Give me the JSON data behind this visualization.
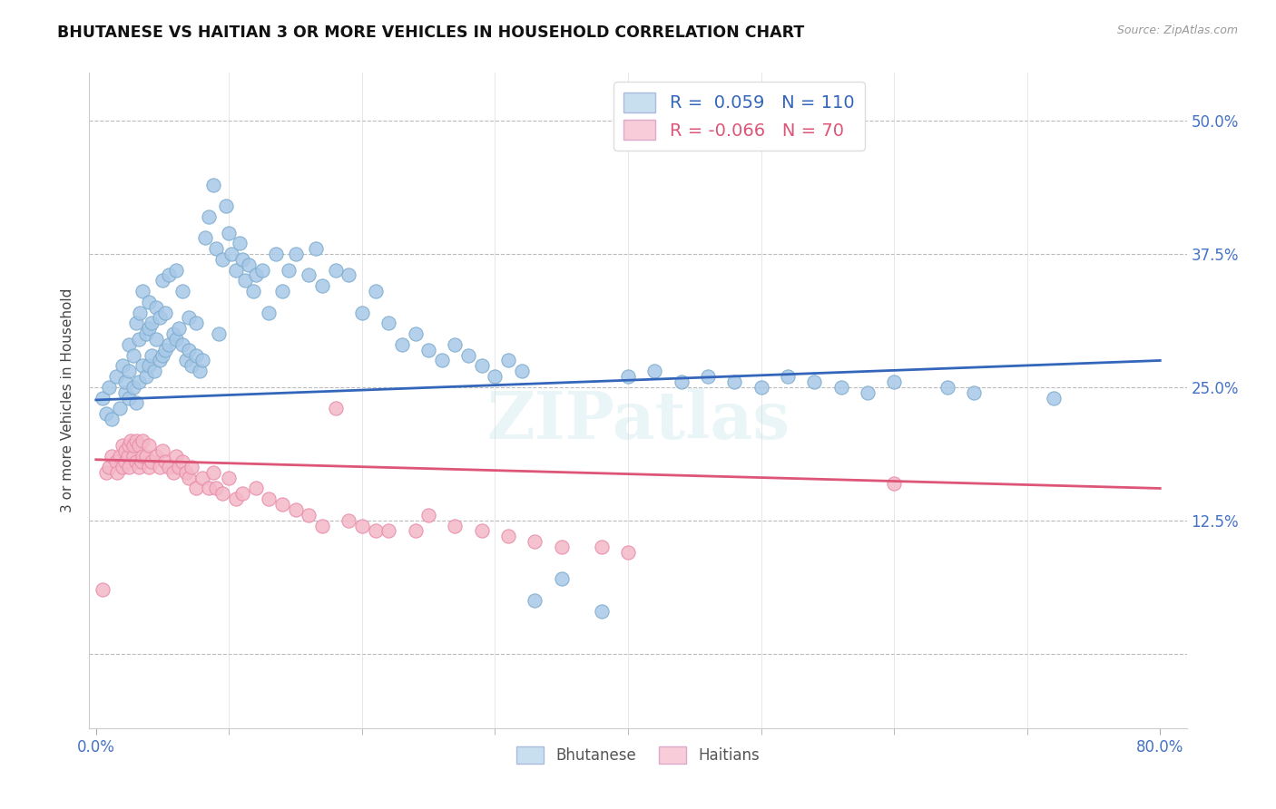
{
  "title": "BHUTANESE VS HAITIAN 3 OR MORE VEHICLES IN HOUSEHOLD CORRELATION CHART",
  "source": "Source: ZipAtlas.com",
  "ylabel": "3 or more Vehicles in Household",
  "xlim": [
    -0.005,
    0.82
  ],
  "ylim": [
    -0.07,
    0.545
  ],
  "bhutanese_R": 0.059,
  "bhutanese_N": 110,
  "haitian_R": -0.066,
  "haitian_N": 70,
  "blue_color": "#a8c8e8",
  "pink_color": "#f4b8c8",
  "blue_edge_color": "#7aaacc",
  "pink_edge_color": "#e888a8",
  "blue_line_color": "#3366bb",
  "pink_line_color": "#dd5577",
  "legend_blue_fill": "#c8dff0",
  "legend_pink_fill": "#f8ccd8",
  "watermark": "ZIPatlas",
  "ytick_vals": [
    0.0,
    0.125,
    0.25,
    0.375,
    0.5
  ],
  "ytick_labels": [
    "",
    "12.5%",
    "25.0%",
    "37.5%",
    "50.0%"
  ],
  "xtick_vals": [
    0.0,
    0.8
  ],
  "xtick_labels": [
    "0.0%",
    "80.0%"
  ],
  "xtick_minor_vals": [
    0.1,
    0.2,
    0.3,
    0.4,
    0.5,
    0.6,
    0.7
  ],
  "blue_trend_x": [
    0.0,
    0.8
  ],
  "blue_trend_y": [
    0.238,
    0.275
  ],
  "pink_trend_x": [
    0.0,
    0.8
  ],
  "pink_trend_y": [
    0.182,
    0.155
  ],
  "blue_scatter_x": [
    0.005,
    0.008,
    0.01,
    0.012,
    0.015,
    0.018,
    0.02,
    0.022,
    0.022,
    0.025,
    0.025,
    0.025,
    0.028,
    0.028,
    0.03,
    0.03,
    0.032,
    0.032,
    0.033,
    0.035,
    0.035,
    0.038,
    0.038,
    0.04,
    0.04,
    0.04,
    0.042,
    0.042,
    0.044,
    0.045,
    0.045,
    0.048,
    0.048,
    0.05,
    0.05,
    0.052,
    0.052,
    0.055,
    0.055,
    0.058,
    0.06,
    0.06,
    0.062,
    0.065,
    0.065,
    0.068,
    0.07,
    0.07,
    0.072,
    0.075,
    0.075,
    0.078,
    0.08,
    0.082,
    0.085,
    0.088,
    0.09,
    0.092,
    0.095,
    0.098,
    0.1,
    0.102,
    0.105,
    0.108,
    0.11,
    0.112,
    0.115,
    0.118,
    0.12,
    0.125,
    0.13,
    0.135,
    0.14,
    0.145,
    0.15,
    0.16,
    0.165,
    0.17,
    0.18,
    0.19,
    0.2,
    0.21,
    0.22,
    0.23,
    0.24,
    0.25,
    0.26,
    0.27,
    0.28,
    0.29,
    0.3,
    0.31,
    0.32,
    0.33,
    0.35,
    0.38,
    0.4,
    0.42,
    0.44,
    0.46,
    0.48,
    0.5,
    0.52,
    0.54,
    0.56,
    0.58,
    0.6,
    0.64,
    0.66,
    0.72
  ],
  "blue_scatter_y": [
    0.24,
    0.225,
    0.25,
    0.22,
    0.26,
    0.23,
    0.27,
    0.245,
    0.255,
    0.24,
    0.265,
    0.29,
    0.25,
    0.28,
    0.235,
    0.31,
    0.255,
    0.295,
    0.32,
    0.27,
    0.34,
    0.26,
    0.3,
    0.27,
    0.305,
    0.33,
    0.28,
    0.31,
    0.265,
    0.295,
    0.325,
    0.275,
    0.315,
    0.28,
    0.35,
    0.285,
    0.32,
    0.29,
    0.355,
    0.3,
    0.295,
    0.36,
    0.305,
    0.29,
    0.34,
    0.275,
    0.285,
    0.315,
    0.27,
    0.28,
    0.31,
    0.265,
    0.275,
    0.39,
    0.41,
    0.44,
    0.38,
    0.3,
    0.37,
    0.42,
    0.395,
    0.375,
    0.36,
    0.385,
    0.37,
    0.35,
    0.365,
    0.34,
    0.355,
    0.36,
    0.32,
    0.375,
    0.34,
    0.36,
    0.375,
    0.355,
    0.38,
    0.345,
    0.36,
    0.355,
    0.32,
    0.34,
    0.31,
    0.29,
    0.3,
    0.285,
    0.275,
    0.29,
    0.28,
    0.27,
    0.26,
    0.275,
    0.265,
    0.05,
    0.07,
    0.04,
    0.26,
    0.265,
    0.255,
    0.26,
    0.255,
    0.25,
    0.26,
    0.255,
    0.25,
    0.245,
    0.255,
    0.25,
    0.245,
    0.24
  ],
  "pink_scatter_x": [
    0.005,
    0.008,
    0.01,
    0.012,
    0.015,
    0.016,
    0.018,
    0.02,
    0.02,
    0.022,
    0.022,
    0.024,
    0.025,
    0.025,
    0.026,
    0.028,
    0.028,
    0.03,
    0.03,
    0.032,
    0.032,
    0.034,
    0.035,
    0.035,
    0.038,
    0.04,
    0.04,
    0.042,
    0.045,
    0.048,
    0.05,
    0.052,
    0.055,
    0.058,
    0.06,
    0.062,
    0.065,
    0.068,
    0.07,
    0.072,
    0.075,
    0.08,
    0.085,
    0.088,
    0.09,
    0.095,
    0.1,
    0.105,
    0.11,
    0.12,
    0.13,
    0.14,
    0.15,
    0.16,
    0.17,
    0.18,
    0.19,
    0.2,
    0.21,
    0.22,
    0.24,
    0.25,
    0.27,
    0.29,
    0.31,
    0.33,
    0.35,
    0.38,
    0.4,
    0.6
  ],
  "pink_scatter_y": [
    0.06,
    0.17,
    0.175,
    0.185,
    0.18,
    0.17,
    0.185,
    0.175,
    0.195,
    0.18,
    0.19,
    0.185,
    0.175,
    0.195,
    0.2,
    0.185,
    0.195,
    0.18,
    0.2,
    0.175,
    0.195,
    0.18,
    0.185,
    0.2,
    0.185,
    0.175,
    0.195,
    0.18,
    0.185,
    0.175,
    0.19,
    0.18,
    0.175,
    0.17,
    0.185,
    0.175,
    0.18,
    0.17,
    0.165,
    0.175,
    0.155,
    0.165,
    0.155,
    0.17,
    0.155,
    0.15,
    0.165,
    0.145,
    0.15,
    0.155,
    0.145,
    0.14,
    0.135,
    0.13,
    0.12,
    0.23,
    0.125,
    0.12,
    0.115,
    0.115,
    0.115,
    0.13,
    0.12,
    0.115,
    0.11,
    0.105,
    0.1,
    0.1,
    0.095,
    0.16
  ]
}
